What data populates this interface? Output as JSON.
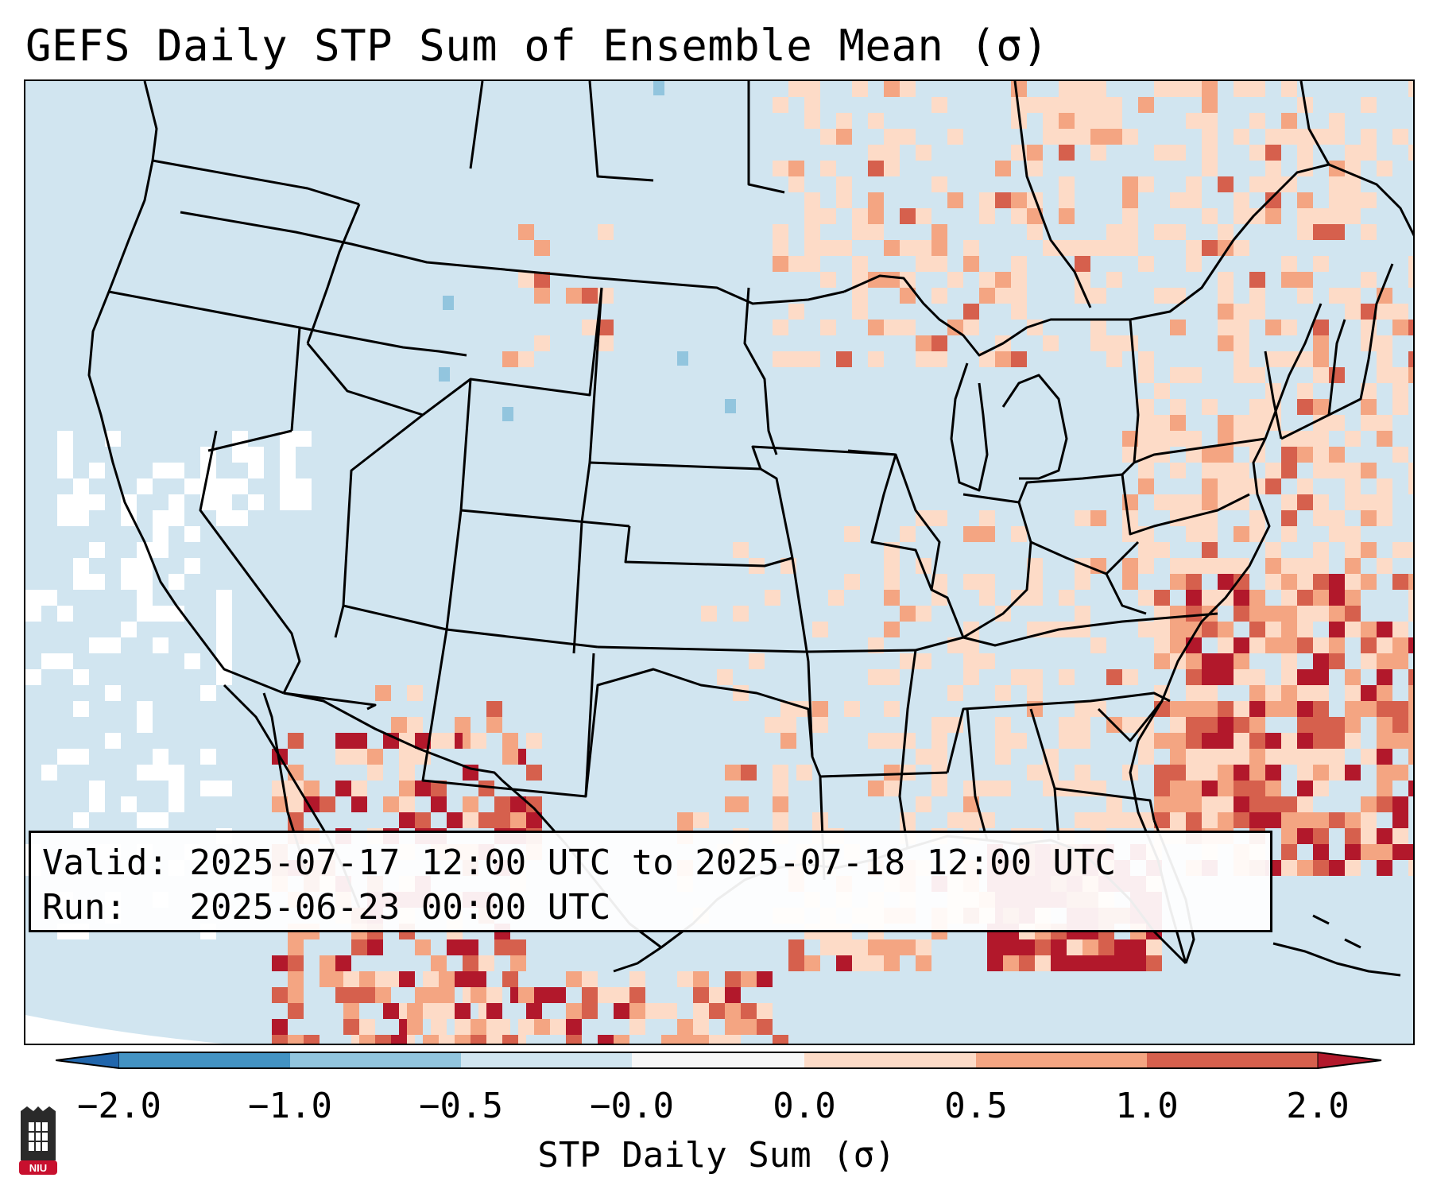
{
  "title": "GEFS Daily STP Sum of Ensemble Mean (σ)",
  "info": {
    "valid_label": "Valid:",
    "valid_range": "2025-07-17 12:00 UTC to 2025-07-18 12:00 UTC",
    "run_label": "Run:",
    "run_time": "2025-06-23 00:00 UTC"
  },
  "colorbar": {
    "label": "STP Daily Sum (σ)",
    "ticks": [
      "−2.0",
      "−1.0",
      "−0.5",
      "−0.0",
      "0.0",
      "0.5",
      "1.0",
      "2.0"
    ],
    "bins": [
      {
        "range": "< -2.0",
        "color": "#2166ac"
      },
      {
        "range": "-2.0 to -1.0",
        "color": "#4393c3"
      },
      {
        "range": "-1.0 to -0.5",
        "color": "#92c5de"
      },
      {
        "range": "-0.5 to -0.0",
        "color": "#d1e5f0"
      },
      {
        "range": "-0.0 to 0.0",
        "color": "#f7f7f7"
      },
      {
        "range": "0.0 to 0.5",
        "color": "#fddbc7"
      },
      {
        "range": "0.5 to 1.0",
        "color": "#f4a582"
      },
      {
        "range": "1.0 to 2.0",
        "color": "#d6604d"
      },
      {
        "range": "> 2.0",
        "color": "#b2182b"
      }
    ]
  },
  "logo": {
    "text": "NIU"
  },
  "colors": {
    "background_anomaly": "#d1e5f0",
    "outside_domain": "#ffffff",
    "state_lines": "#000000"
  }
}
